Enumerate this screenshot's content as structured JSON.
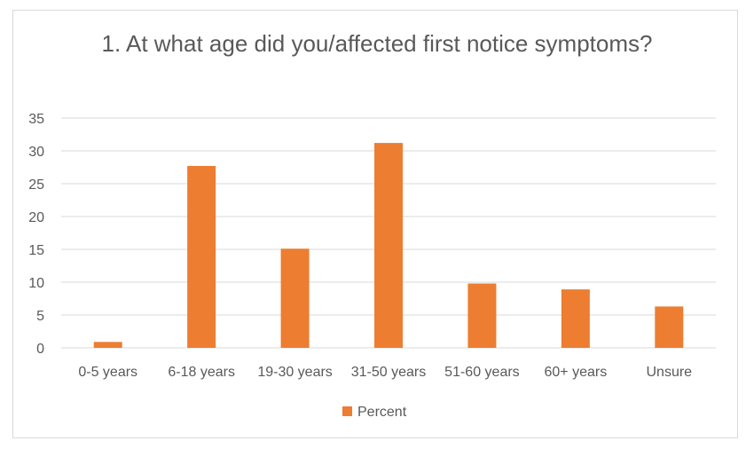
{
  "colors": {
    "bar": "#ed7d31",
    "grid": "#d9d9d9",
    "text": "#595959"
  },
  "chart_data": {
    "type": "bar",
    "title": "1. At what age did you/affected first notice symptoms?",
    "categories": [
      "0-5 years",
      "6-18 years",
      "19-30 years",
      "31-50 years",
      "51-60 years",
      "60+ years",
      "Unsure"
    ],
    "series": [
      {
        "name": "Percent",
        "values": [
          0.9,
          27.7,
          15.1,
          31.2,
          9.8,
          8.9,
          6.3
        ]
      }
    ],
    "xlabel": "",
    "ylabel": "",
    "ylim": [
      0,
      35
    ],
    "yticks": [
      0,
      5,
      10,
      15,
      20,
      25,
      30,
      35
    ],
    "grid": true,
    "legend": "bottom"
  }
}
